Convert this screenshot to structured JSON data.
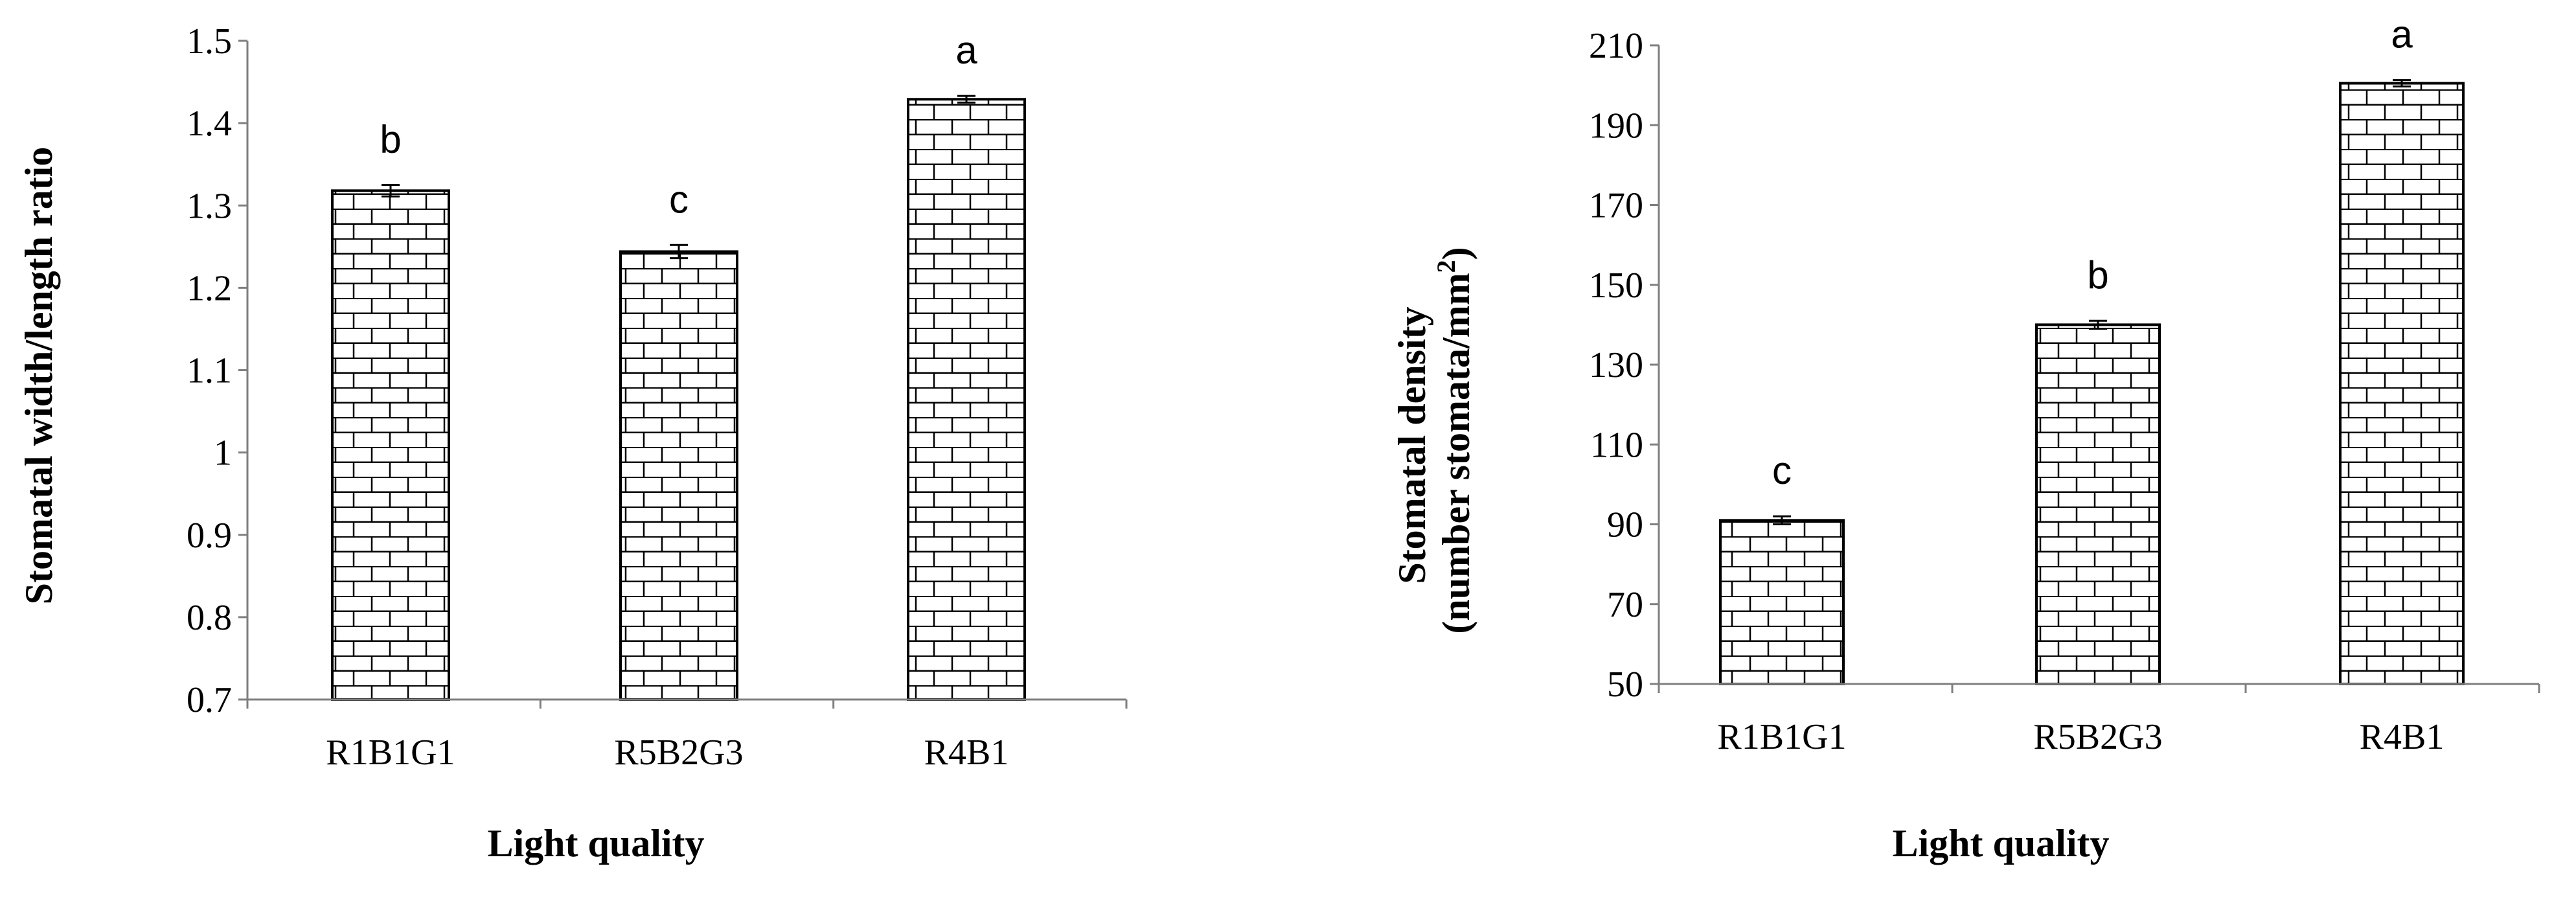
{
  "chart_data": [
    {
      "type": "bar",
      "title": "",
      "xlabel": "Light quality",
      "ylabel": "Stomatal width/length ratio",
      "categories": [
        "R1B1G1",
        "R5B2G3",
        "R4B1"
      ],
      "series": [
        {
          "values": [
            1.318,
            1.244,
            1.429
          ],
          "errors": [
            0.007,
            0.008,
            0.004
          ]
        }
      ],
      "significance_letters": [
        "b",
        "c",
        "a"
      ],
      "ylim": [
        0.7,
        1.5
      ],
      "yticks": [
        "0.7",
        "0.8",
        "0.9",
        "1",
        "1.1",
        "1.2",
        "1.3",
        "1.4",
        "1.5"
      ],
      "grid": false,
      "bar_fill": "brick-pattern",
      "colors": {
        "bar_stroke": "#000000",
        "axis": "#7f7f7f"
      }
    },
    {
      "type": "bar",
      "title": "",
      "xlabel": "Light quality",
      "ylabel_lines": [
        "Stomatal density",
        "(number stomata/mm",
        ")"
      ],
      "ylabel_superscript": "2",
      "categories": [
        "R1B1G1",
        "R5B2G3",
        "R4B1"
      ],
      "series": [
        {
          "values": [
            91,
            140,
            200.5
          ],
          "errors": [
            1.0,
            1.0,
            0.8
          ]
        }
      ],
      "significance_letters": [
        "c",
        "b",
        "a"
      ],
      "ylim": [
        50,
        210
      ],
      "yticks": [
        "50",
        "70",
        "90",
        "110",
        "130",
        "150",
        "170",
        "190",
        "210"
      ],
      "grid": false,
      "bar_fill": "brick-pattern",
      "colors": {
        "bar_stroke": "#000000",
        "axis": "#7f7f7f"
      }
    }
  ]
}
